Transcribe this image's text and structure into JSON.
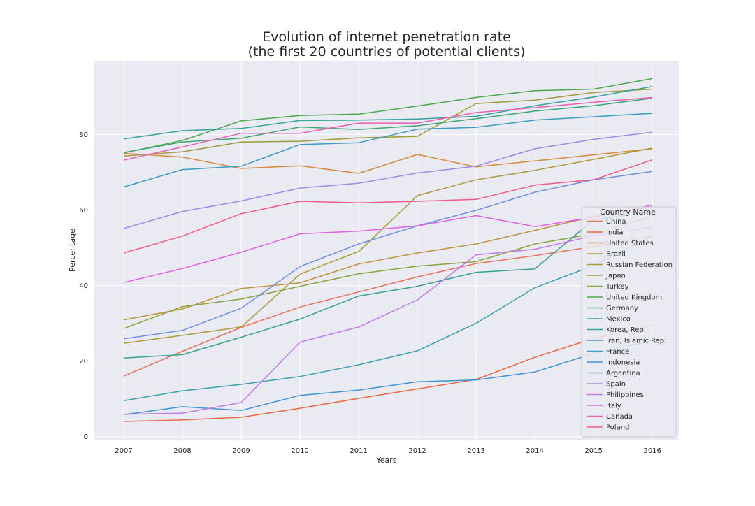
{
  "chart_data": {
    "type": "line",
    "title": "Evolution of internet penetration rate",
    "subtitle": "(the first 20 countries of potential clients)",
    "xlabel": "Years",
    "ylabel": "Percentage",
    "x": [
      2007,
      2008,
      2009,
      2010,
      2011,
      2012,
      2013,
      2014,
      2015,
      2016
    ],
    "xlim": [
      2006.5,
      2016.45
    ],
    "ylim": [
      -1,
      99.5
    ],
    "yticks": [
      0,
      20,
      40,
      60,
      80
    ],
    "grid": true,
    "legend_title": "Country Name",
    "legend_position": "right",
    "series": [
      {
        "name": "China",
        "color": "#e8735b",
        "values": [
          16.0,
          22.6,
          28.9,
          34.3,
          38.3,
          42.3,
          45.8,
          47.9,
          50.3,
          53.2
        ]
      },
      {
        "name": "India",
        "color": "#e96a44",
        "values": [
          4.0,
          4.4,
          5.1,
          7.5,
          10.1,
          12.6,
          15.1,
          21.0,
          26.0,
          29.5
        ]
      },
      {
        "name": "United States",
        "color": "#d88a3b",
        "values": [
          75.0,
          74.0,
          71.0,
          71.7,
          69.7,
          74.7,
          71.4,
          73.0,
          74.6,
          76.2
        ]
      },
      {
        "name": "Brazil",
        "color": "#c1923a",
        "values": [
          30.9,
          33.8,
          39.2,
          40.7,
          45.7,
          48.6,
          51.0,
          54.6,
          58.3,
          60.9
        ]
      },
      {
        "name": "Russian Federation",
        "color": "#ad9a38",
        "values": [
          24.7,
          26.8,
          29.0,
          43.0,
          49.0,
          63.8,
          68.0,
          70.5,
          73.4,
          76.4
        ]
      },
      {
        "name": "Japan",
        "color": "#a09a3a",
        "values": [
          74.3,
          75.4,
          78.0,
          78.2,
          79.1,
          79.5,
          88.2,
          89.1,
          91.1,
          92.0
        ]
      },
      {
        "name": "Turkey",
        "color": "#8ca63b",
        "values": [
          28.6,
          34.4,
          36.4,
          39.8,
          43.1,
          45.1,
          46.3,
          51.0,
          53.7,
          58.3
        ]
      },
      {
        "name": "United Kingdom",
        "color": "#4aa84c",
        "values": [
          75.1,
          78.4,
          83.6,
          85.0,
          85.4,
          87.5,
          89.8,
          91.6,
          92.0,
          94.8
        ]
      },
      {
        "name": "Germany",
        "color": "#3fa774",
        "values": [
          75.2,
          78.0,
          79.0,
          82.0,
          81.3,
          82.3,
          84.2,
          86.2,
          87.6,
          89.6
        ]
      },
      {
        "name": "Mexico",
        "color": "#36a38f",
        "values": [
          20.8,
          21.7,
          26.3,
          31.1,
          37.2,
          39.8,
          43.5,
          44.4,
          57.4,
          59.5
        ]
      },
      {
        "name": "Korea, Rep.",
        "color": "#36a39c",
        "values": [
          78.8,
          81.0,
          81.6,
          83.7,
          83.8,
          84.1,
          84.8,
          87.6,
          89.9,
          92.7
        ]
      },
      {
        "name": "Iran, Islamic Rep.",
        "color": "#38a0ac",
        "values": [
          9.5,
          12.1,
          13.8,
          15.9,
          19.0,
          22.7,
          30.0,
          39.4,
          45.3,
          53.2
        ]
      },
      {
        "name": "France",
        "color": "#3a9cbe",
        "values": [
          66.1,
          70.7,
          71.6,
          77.3,
          77.8,
          81.4,
          81.9,
          83.8,
          84.7,
          85.6
        ]
      },
      {
        "name": "Indonesia",
        "color": "#3f95d3",
        "values": [
          5.8,
          7.9,
          6.9,
          10.9,
          12.3,
          14.5,
          15.0,
          17.1,
          22.0,
          25.4
        ]
      },
      {
        "name": "Argentina",
        "color": "#6f8fe2",
        "values": [
          25.9,
          28.1,
          34.0,
          45.0,
          51.0,
          55.8,
          59.9,
          64.7,
          68.0,
          70.2
        ]
      },
      {
        "name": "Spain",
        "color": "#9b8ce4",
        "values": [
          55.1,
          59.6,
          62.4,
          65.8,
          67.1,
          69.8,
          71.6,
          76.2,
          78.7,
          80.6
        ]
      },
      {
        "name": "Philippines",
        "color": "#c07be8",
        "values": [
          5.9,
          6.2,
          9.0,
          25.0,
          29.0,
          36.2,
          48.1,
          49.6,
          53.2,
          55.5
        ]
      },
      {
        "name": "Italy",
        "color": "#e25fe3",
        "values": [
          40.8,
          44.5,
          48.8,
          53.7,
          54.4,
          55.8,
          58.5,
          55.6,
          58.1,
          61.3
        ]
      },
      {
        "name": "Canada",
        "color": "#ea5fb8",
        "values": [
          73.2,
          76.7,
          80.3,
          80.3,
          83.0,
          83.0,
          85.8,
          87.1,
          88.5,
          89.8
        ]
      },
      {
        "name": "Poland",
        "color": "#ee5c8a",
        "values": [
          48.6,
          53.1,
          59.0,
          62.3,
          61.9,
          62.3,
          62.8,
          66.6,
          68.0,
          73.3
        ]
      }
    ]
  }
}
